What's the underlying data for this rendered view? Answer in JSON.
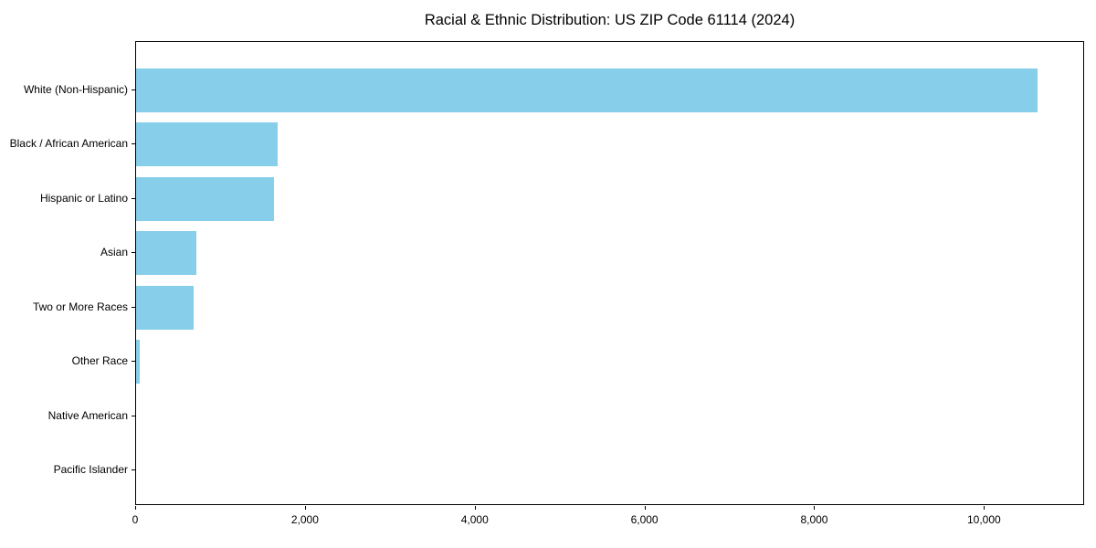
{
  "title": "Racial & Ethnic Distribution: US ZIP Code 61114 (2024)",
  "colors": {
    "bar": "#87CEEB",
    "axis": "#000000",
    "background": "#ffffff",
    "text": "#000000"
  },
  "chart_data": {
    "type": "bar",
    "orientation": "horizontal",
    "title": "Racial & Ethnic Distribution: US ZIP Code 61114 (2024)",
    "xlabel": "",
    "ylabel": "",
    "categories": [
      "White (Non-Hispanic)",
      "Black / African American",
      "Hispanic or Latino",
      "Asian",
      "Two or More Races",
      "Other Race",
      "Native American",
      "Pacific Islander"
    ],
    "values": [
      10620,
      1665,
      1620,
      715,
      680,
      45,
      0,
      0
    ],
    "xlim": [
      0,
      11180
    ],
    "xticks": [
      0,
      2000,
      4000,
      6000,
      8000,
      10000
    ],
    "xtick_labels": [
      "0",
      "2,000",
      "4,000",
      "6,000",
      "8,000",
      "10,000"
    ],
    "grid": false,
    "legend": null,
    "bar_color": "#87CEEB",
    "frame": "full-box"
  }
}
